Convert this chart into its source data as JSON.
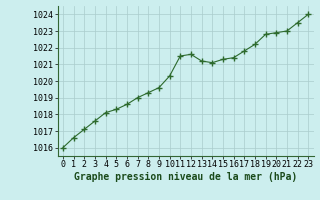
{
  "hours": [
    0,
    1,
    2,
    3,
    4,
    5,
    6,
    7,
    8,
    9,
    10,
    11,
    12,
    13,
    14,
    15,
    16,
    17,
    18,
    19,
    20,
    21,
    22,
    23
  ],
  "pressure": [
    1016.0,
    1016.6,
    1017.1,
    1017.6,
    1018.1,
    1018.3,
    1018.6,
    1019.0,
    1019.3,
    1019.6,
    1020.3,
    1021.5,
    1021.6,
    1021.2,
    1021.1,
    1021.3,
    1021.4,
    1021.8,
    1022.2,
    1022.8,
    1022.9,
    1023.0,
    1023.5,
    1024.0
  ],
  "line_color": "#2d6a2d",
  "marker_color": "#2d6a2d",
  "bg_color": "#cceeee",
  "grid_color": "#aacccc",
  "xlabel": "Graphe pression niveau de la mer (hPa)",
  "xlabel_fontsize": 7,
  "ylim": [
    1015.5,
    1024.5
  ],
  "yticks": [
    1016,
    1017,
    1018,
    1019,
    1020,
    1021,
    1022,
    1023,
    1024
  ],
  "xticks": [
    0,
    1,
    2,
    3,
    4,
    5,
    6,
    7,
    8,
    9,
    10,
    11,
    12,
    13,
    14,
    15,
    16,
    17,
    18,
    19,
    20,
    21,
    22,
    23
  ],
  "tick_fontsize": 6,
  "line_width": 0.8,
  "marker_size": 4
}
